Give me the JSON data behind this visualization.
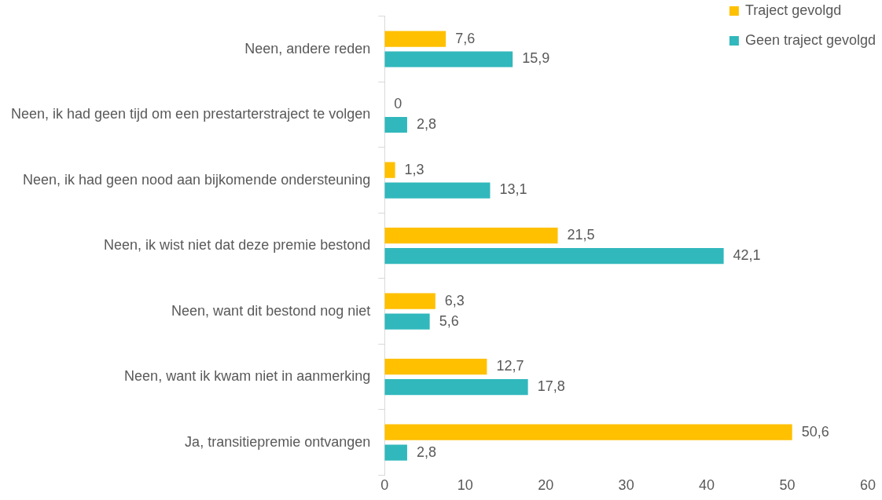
{
  "chart_data": {
    "type": "bar",
    "orientation": "horizontal",
    "categories": [
      "Neen, andere reden",
      "Neen, ik had geen tijd om een prestarterstraject te volgen",
      "Neen, ik had geen nood aan bijkomende ondersteuning",
      "Neen, ik wist niet dat deze premie bestond",
      "Neen, want dit bestond nog niet",
      "Neen, want ik kwam niet in aanmerking",
      "Ja, transitiepremie ontvangen"
    ],
    "series": [
      {
        "name": "Traject gevolgd",
        "color": "#ffc000",
        "values": [
          7.6,
          0,
          1.3,
          21.5,
          6.3,
          12.7,
          50.6
        ],
        "value_labels": [
          "7,6",
          "0",
          "1,3",
          "21,5",
          "6,3",
          "12,7",
          "50,6"
        ]
      },
      {
        "name": "Geen traject gevolgd",
        "color": "#31b8bc",
        "values": [
          15.9,
          2.8,
          13.1,
          42.1,
          5.6,
          17.8,
          2.8
        ],
        "value_labels": [
          "15,9",
          "2,8",
          "13,1",
          "42,1",
          "5,6",
          "17,8",
          "2,8"
        ]
      }
    ],
    "xlim": [
      0,
      60
    ],
    "xticks": [
      0,
      10,
      20,
      30,
      40,
      50,
      60
    ],
    "grid": false,
    "legend": "top right"
  }
}
